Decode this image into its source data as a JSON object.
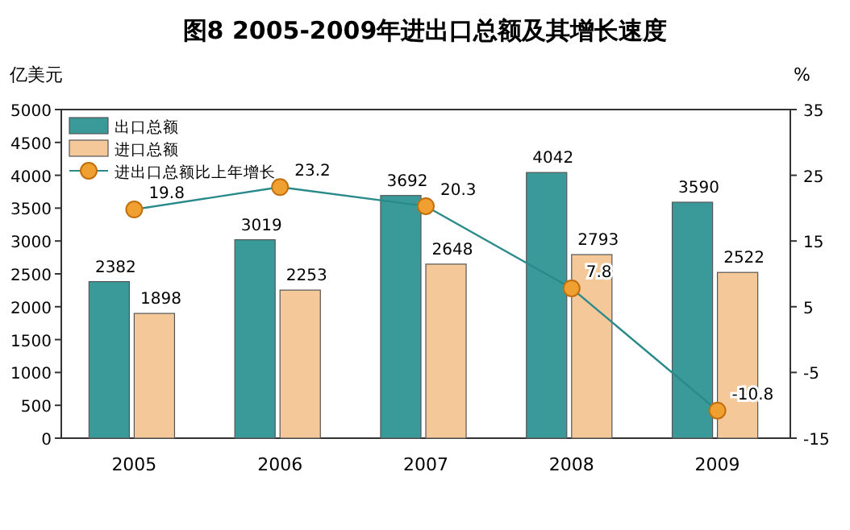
{
  "chart_data": {
    "type": "bar",
    "title": "图8 2005-2009年进出口总额及其增长速度",
    "ylabel": "亿美元",
    "y2label": "%",
    "categories": [
      "2005",
      "2006",
      "2007",
      "2008",
      "2009"
    ],
    "series": [
      {
        "name": "出口总额",
        "color": "#3a9a9a",
        "values": [
          2382,
          3019,
          3692,
          4042,
          3590
        ]
      },
      {
        "name": "进口总额",
        "color": "#f5c89a",
        "values": [
          1898,
          2253,
          2648,
          2793,
          2522
        ]
      },
      {
        "name": "进出口总额比上年增长",
        "type": "line",
        "axis": "y2",
        "color": "#2a8a8a",
        "values": [
          19.8,
          23.2,
          20.3,
          7.8,
          -10.8
        ]
      }
    ],
    "ylim": [
      0,
      5000
    ],
    "yticks": [
      0,
      500,
      1000,
      1500,
      2000,
      2500,
      3000,
      3500,
      4000,
      4500,
      5000
    ],
    "y2lim": [
      -15,
      35
    ],
    "y2ticks": [
      -15,
      -5,
      5,
      15,
      25,
      35
    ],
    "legend": "top left",
    "marker": "circle",
    "data_labels": true
  }
}
